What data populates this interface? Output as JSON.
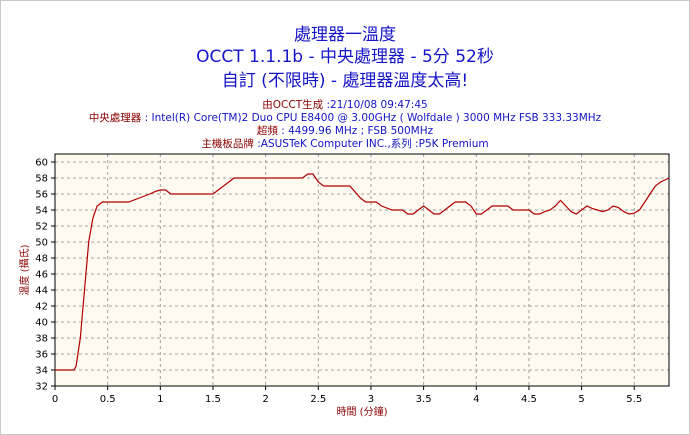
{
  "header": {
    "title": "處理器一溫度",
    "subtitle": "OCCT 1.1.1b - 中央處理器 - 5分 52秒",
    "mode": "自訂 (不限時) - 處理器溫度太高!",
    "info": [
      {
        "label": "由OCCT生成 ",
        "value": ":21/10/08 09:47:45"
      },
      {
        "label": "中央處理器 ",
        "value": ": Intel(R) Core(TM)2 Duo CPU E8400 @ 3.00GHz ( Wolfdale ) 3000 MHz FSB 333.33MHz"
      },
      {
        "label": "超頻 ",
        "value": ": 4499.96 MHz ; FSB 500MHz"
      },
      {
        "label": "主機板品牌 ",
        "value": ":ASUSTeK Computer INC.,系列 :P5K Premium"
      }
    ]
  },
  "chart_data": {
    "type": "line",
    "title": "處理器一溫度",
    "xlabel": "時間 (分鐘)",
    "ylabel": "溫度 (攝氏)",
    "xlim": [
      0,
      5.83
    ],
    "ylim": [
      32,
      61
    ],
    "xticks": [
      "0",
      "0.5",
      "1",
      "1.5",
      "2",
      "2.5",
      "3",
      "3.5",
      "4",
      "4.5",
      "5",
      "5.5"
    ],
    "yticks": [
      "32",
      "34",
      "36",
      "38",
      "40",
      "42",
      "44",
      "46",
      "48",
      "50",
      "52",
      "54",
      "56",
      "58",
      "60"
    ],
    "grid": true,
    "colors": {
      "line": "#b00000",
      "plot_bg": "#fffaf0",
      "grid": "#a0a0a0",
      "title": "#1414c8",
      "label": "#8b0000"
    },
    "series": [
      {
        "x": [
          0,
          0.18,
          0.2,
          0.24,
          0.28,
          0.32,
          0.36,
          0.4,
          0.45,
          0.5,
          0.55,
          0.6,
          0.7,
          0.8,
          0.9,
          0.95,
          1.0,
          1.05,
          1.1,
          1.2,
          1.3,
          1.4,
          1.5,
          1.55,
          1.6,
          1.65,
          1.7,
          1.8,
          2.0,
          2.2,
          2.3,
          2.35,
          2.4,
          2.45,
          2.5,
          2.55,
          2.6,
          2.7,
          2.8,
          2.9,
          2.95,
          3.0,
          3.05,
          3.1,
          3.2,
          3.25,
          3.3,
          3.35,
          3.4,
          3.45,
          3.5,
          3.55,
          3.6,
          3.65,
          3.7,
          3.75,
          3.8,
          3.85,
          3.9,
          3.95,
          4.0,
          4.05,
          4.1,
          4.15,
          4.2,
          4.25,
          4.3,
          4.35,
          4.4,
          4.45,
          4.5,
          4.55,
          4.6,
          4.65,
          4.7,
          4.75,
          4.8,
          4.85,
          4.9,
          4.95,
          5.0,
          5.05,
          5.1,
          5.15,
          5.2,
          5.25,
          5.3,
          5.35,
          5.4,
          5.45,
          5.5,
          5.55,
          5.6,
          5.65,
          5.7,
          5.75,
          5.83
        ],
        "y": [
          34,
          34,
          34.5,
          38,
          44,
          50,
          53,
          54.5,
          55,
          55,
          55,
          55,
          55,
          55.5,
          56,
          56.3,
          56.5,
          56.5,
          56,
          56,
          56,
          56,
          56,
          56.5,
          57,
          57.5,
          58,
          58,
          58,
          58,
          58,
          58,
          58.5,
          58.5,
          57.5,
          57,
          57,
          57,
          57,
          55.5,
          55,
          55,
          55,
          54.5,
          54,
          54,
          54,
          53.5,
          53.5,
          54,
          54.5,
          54,
          53.5,
          53.5,
          54,
          54.5,
          55,
          55,
          55,
          54.5,
          53.5,
          53.5,
          54,
          54.5,
          54.5,
          54.5,
          54.5,
          54,
          54,
          54,
          54,
          53.5,
          53.5,
          53.8,
          54,
          54.5,
          55.2,
          54.5,
          53.8,
          53.5,
          54,
          54.5,
          54.2,
          54,
          53.8,
          54,
          54.5,
          54.3,
          53.8,
          53.5,
          53.6,
          54,
          55,
          56,
          57,
          57.5,
          58
        ]
      }
    ]
  }
}
